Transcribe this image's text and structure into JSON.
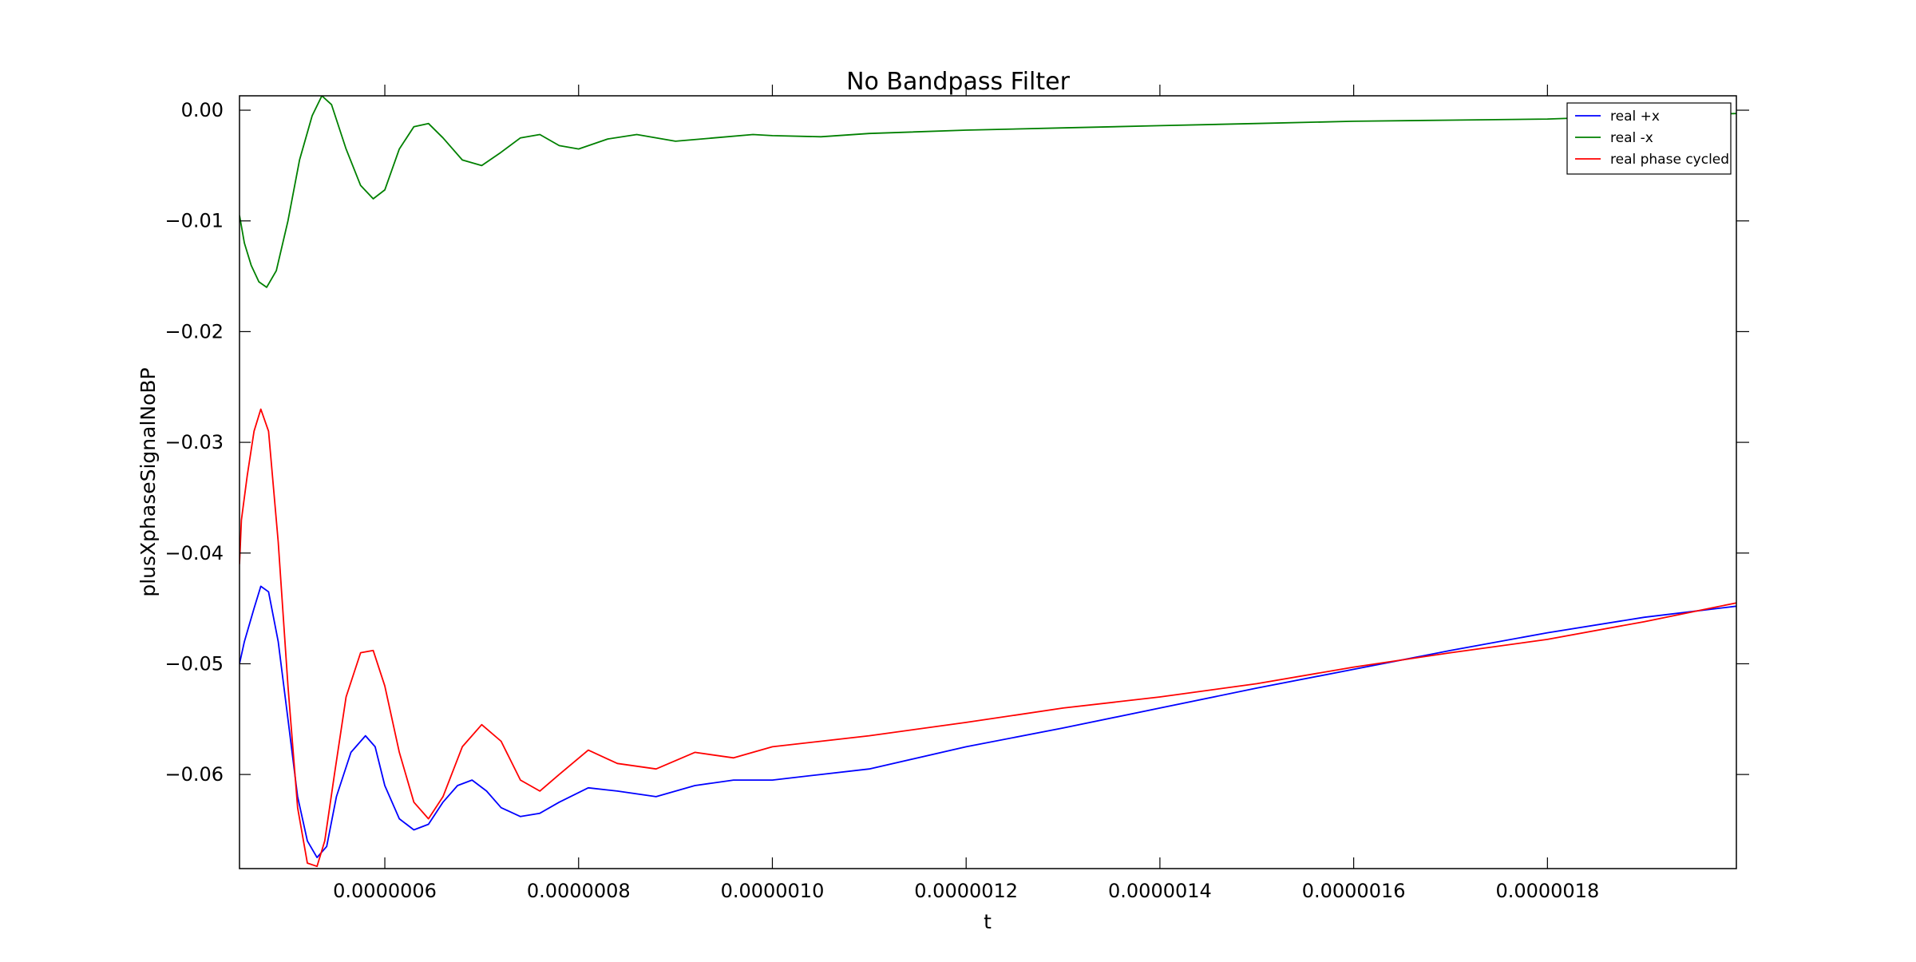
{
  "chart_data": {
    "type": "line",
    "title": "No Bandpass Filter",
    "xlabel": "t",
    "ylabel": "plusXphaseSignalNoBP",
    "xlim": [
      4.5e-07,
      1.995e-06
    ],
    "ylim": [
      -0.0685,
      0.0013
    ],
    "xticks": [
      6e-07,
      8e-07,
      1e-06,
      1.2e-06,
      1.4e-06,
      1.6e-06,
      1.8e-06
    ],
    "xtick_labels": [
      "0.0000006",
      "0.0000008",
      "0.0000010",
      "0.0000012",
      "0.0000014",
      "0.0000016",
      "0.0000018"
    ],
    "yticks": [
      0.0,
      -0.01,
      -0.02,
      -0.03,
      -0.04,
      -0.05,
      -0.06
    ],
    "ytick_labels": [
      "0.00",
      "−0.01",
      "−0.02",
      "−0.03",
      "−0.04",
      "−0.05",
      "−0.06"
    ],
    "grid": false,
    "legend_position": "top-right",
    "series": [
      {
        "name": "real +x",
        "color": "#0000ff",
        "x": [
          4.5e-07,
          4.55e-07,
          4.65e-07,
          4.72e-07,
          4.8e-07,
          4.9e-07,
          5e-07,
          5.1e-07,
          5.2e-07,
          5.3e-07,
          5.4e-07,
          5.5e-07,
          5.65e-07,
          5.8e-07,
          5.9e-07,
          6e-07,
          6.15e-07,
          6.3e-07,
          6.45e-07,
          6.6e-07,
          6.75e-07,
          6.9e-07,
          7.05e-07,
          7.2e-07,
          7.4e-07,
          7.6e-07,
          7.8e-07,
          8.1e-07,
          8.4e-07,
          8.8e-07,
          9.2e-07,
          9.6e-07,
          1e-06,
          1.05e-06,
          1.1e-06,
          1.2e-06,
          1.3e-06,
          1.4e-06,
          1.5e-06,
          1.6e-06,
          1.7e-06,
          1.8e-06,
          1.9e-06,
          1.995e-06
        ],
        "values": [
          -0.05,
          -0.048,
          -0.045,
          -0.043,
          -0.0435,
          -0.048,
          -0.055,
          -0.062,
          -0.066,
          -0.0675,
          -0.0665,
          -0.062,
          -0.058,
          -0.0565,
          -0.0575,
          -0.061,
          -0.064,
          -0.065,
          -0.0645,
          -0.0625,
          -0.061,
          -0.0605,
          -0.0615,
          -0.063,
          -0.0638,
          -0.0635,
          -0.0625,
          -0.0612,
          -0.0615,
          -0.062,
          -0.061,
          -0.0605,
          -0.0605,
          -0.06,
          -0.0595,
          -0.0575,
          -0.0558,
          -0.054,
          -0.0522,
          -0.0505,
          -0.0488,
          -0.0472,
          -0.0458,
          -0.0448
        ]
      },
      {
        "name": "real -x",
        "color": "#008000",
        "x": [
          4.5e-07,
          4.55e-07,
          4.62e-07,
          4.7e-07,
          4.78e-07,
          4.88e-07,
          5e-07,
          5.12e-07,
          5.25e-07,
          5.35e-07,
          5.45e-07,
          5.6e-07,
          5.75e-07,
          5.88e-07,
          6e-07,
          6.15e-07,
          6.3e-07,
          6.45e-07,
          6.6e-07,
          6.8e-07,
          7e-07,
          7.2e-07,
          7.4e-07,
          7.6e-07,
          7.8e-07,
          8e-07,
          8.3e-07,
          8.6e-07,
          9e-07,
          9.4e-07,
          9.8e-07,
          1e-06,
          1.05e-06,
          1.1e-06,
          1.2e-06,
          1.3e-06,
          1.4e-06,
          1.5e-06,
          1.6e-06,
          1.7e-06,
          1.8e-06,
          1.9e-06,
          1.995e-06
        ],
        "values": [
          -0.0095,
          -0.012,
          -0.014,
          -0.0155,
          -0.016,
          -0.0145,
          -0.01,
          -0.0045,
          -0.0005,
          0.0013,
          0.0005,
          -0.0035,
          -0.0068,
          -0.008,
          -0.0072,
          -0.0035,
          -0.0015,
          -0.0012,
          -0.0025,
          -0.0045,
          -0.005,
          -0.0038,
          -0.0025,
          -0.0022,
          -0.0032,
          -0.0035,
          -0.0026,
          -0.0022,
          -0.0028,
          -0.0025,
          -0.0022,
          -0.0023,
          -0.0024,
          -0.0021,
          -0.0018,
          -0.0016,
          -0.0014,
          -0.0012,
          -0.001,
          -0.0009,
          -0.0008,
          -0.0005,
          -0.0003
        ]
      },
      {
        "name": "real phase cycled",
        "color": "#ff0000",
        "x": [
          4.5e-07,
          4.52e-07,
          4.58e-07,
          4.65e-07,
          4.72e-07,
          4.8e-07,
          4.9e-07,
          5e-07,
          5.1e-07,
          5.2e-07,
          5.3e-07,
          5.38e-07,
          5.48e-07,
          5.6e-07,
          5.75e-07,
          5.88e-07,
          6e-07,
          6.15e-07,
          6.3e-07,
          6.45e-07,
          6.6e-07,
          6.8e-07,
          7e-07,
          7.2e-07,
          7.4e-07,
          7.6e-07,
          7.8e-07,
          8.1e-07,
          8.4e-07,
          8.8e-07,
          9.2e-07,
          9.6e-07,
          1e-06,
          1.05e-06,
          1.1e-06,
          1.2e-06,
          1.3e-06,
          1.4e-06,
          1.5e-06,
          1.6e-06,
          1.7e-06,
          1.8e-06,
          1.9e-06,
          1.995e-06
        ],
        "values": [
          -0.041,
          -0.037,
          -0.033,
          -0.029,
          -0.027,
          -0.029,
          -0.039,
          -0.052,
          -0.063,
          -0.068,
          -0.0683,
          -0.066,
          -0.06,
          -0.053,
          -0.049,
          -0.0488,
          -0.052,
          -0.058,
          -0.0625,
          -0.064,
          -0.062,
          -0.0575,
          -0.0555,
          -0.057,
          -0.0605,
          -0.0615,
          -0.06,
          -0.0578,
          -0.059,
          -0.0595,
          -0.058,
          -0.0585,
          -0.0575,
          -0.057,
          -0.0565,
          -0.0553,
          -0.054,
          -0.053,
          -0.0518,
          -0.0503,
          -0.049,
          -0.0478,
          -0.0462,
          -0.0445
        ]
      }
    ]
  }
}
